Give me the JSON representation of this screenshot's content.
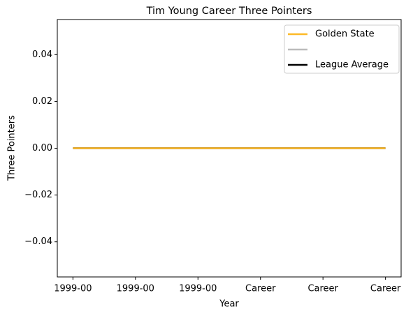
{
  "chart_data": {
    "type": "line",
    "title": "Tim Young  Career Three Pointers",
    "xlabel": "Year",
    "ylabel": "Three Pointers",
    "categories": [
      "1999-00",
      "1999-00",
      "1999-00",
      "Career",
      "Career",
      "Career"
    ],
    "series": [
      {
        "color": "#bbbbbb",
        "values": [
          0,
          0,
          0,
          0,
          0,
          0
        ]
      },
      {
        "name": "League Average",
        "color": "#000000",
        "values": [
          0,
          0,
          0,
          0,
          0,
          0
        ]
      },
      {
        "name": "Golden State",
        "color": "#fdb927",
        "values": [
          0,
          0,
          0,
          0,
          0,
          0
        ]
      }
    ],
    "legend_order": [
      2,
      0,
      1
    ],
    "legend": "upper right",
    "ylim": [
      -0.055,
      0.055
    ],
    "yticks": [
      {
        "value": -0.04,
        "label": "−0.04"
      },
      {
        "value": -0.02,
        "label": "−0.02"
      },
      {
        "value": 0,
        "label": "0.00"
      },
      0.02,
      0.04
    ]
  }
}
